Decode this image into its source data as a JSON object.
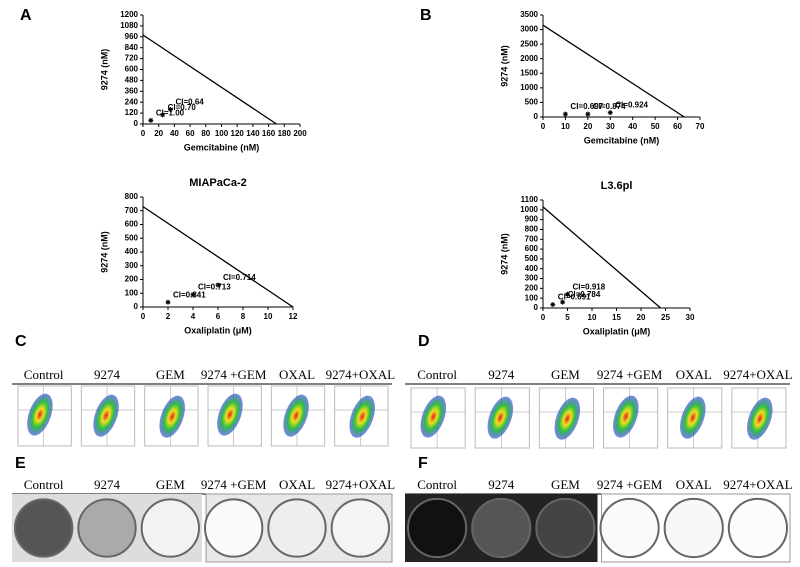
{
  "panel_labels": [
    "A",
    "B",
    "C",
    "D",
    "E",
    "F"
  ],
  "chart_data": [
    {
      "type": "isobologram",
      "x_label": "Gemcitabine (nM)",
      "y_label": "9274 (nM)",
      "xlim": [
        0,
        200
      ],
      "xticks": [
        0,
        20,
        40,
        60,
        80,
        100,
        120,
        140,
        160,
        180,
        200
      ],
      "ylim": [
        0,
        1200
      ],
      "yticks": [
        0,
        120,
        240,
        360,
        480,
        600,
        720,
        840,
        960,
        1080,
        1200
      ],
      "line": {
        "x": [
          0,
          170
        ],
        "y": [
          980,
          0
        ]
      },
      "points": {
        "x": [
          10,
          25,
          35
        ],
        "y": [
          40,
          100,
          160
        ],
        "labels": [
          "CI=1.00",
          "CI=0.70",
          "CI=0.64"
        ]
      }
    },
    {
      "type": "isobologram",
      "x_label": "Gemcitabine (nM)",
      "y_label": "9274 (nM)",
      "xlim": [
        0,
        70
      ],
      "xticks": [
        0,
        10,
        20,
        30,
        40,
        50,
        60,
        70
      ],
      "ylim": [
        0,
        3500
      ],
      "yticks": [
        0,
        500,
        1000,
        1500,
        2000,
        2500,
        3000,
        3500
      ],
      "line": {
        "x": [
          0,
          63
        ],
        "y": [
          3150,
          0
        ]
      },
      "points": {
        "x": [
          10,
          20,
          30
        ],
        "y": [
          100,
          100,
          150
        ],
        "labels": [
          "CI=0.697",
          "CI=0.874",
          "CI=0.924"
        ]
      }
    },
    {
      "type": "isobologram",
      "title": "MIAPaCa-2",
      "x_label": "Oxaliplatin (μM)",
      "y_label": "9274 (nM)",
      "xlim": [
        0,
        12
      ],
      "xticks": [
        0,
        2,
        4,
        6,
        8,
        10,
        12
      ],
      "ylim": [
        0,
        800
      ],
      "yticks": [
        0,
        100,
        200,
        300,
        400,
        500,
        600,
        700,
        800
      ],
      "line": {
        "x": [
          0,
          12
        ],
        "y": [
          730,
          0
        ]
      },
      "points": {
        "x": [
          2,
          4,
          6
        ],
        "y": [
          35,
          90,
          160
        ],
        "labels": [
          "CI=0.841",
          "CI=0.713",
          "CI=0.714"
        ]
      }
    },
    {
      "type": "isobologram",
      "title": "L3.6pl",
      "x_label": "Oxaliplatin (μM)",
      "y_label": "9274 (nM)",
      "xlim": [
        0,
        30
      ],
      "xticks": [
        0,
        5,
        10,
        15,
        20,
        25,
        30
      ],
      "ylim": [
        0,
        1100
      ],
      "yticks": [
        0,
        100,
        200,
        300,
        400,
        500,
        600,
        700,
        800,
        900,
        1000,
        1100
      ],
      "line": {
        "x": [
          0,
          24
        ],
        "y": [
          1030,
          0
        ]
      },
      "points": {
        "x": [
          2,
          4,
          5
        ],
        "y": [
          35,
          60,
          140
        ],
        "labels": [
          "CI=0.691",
          "CI=0.784",
          "CI=0.918"
        ]
      }
    }
  ],
  "image_panels": [
    {
      "columns": [
        "Control",
        "9274",
        "GEM",
        "9274 +GEM",
        "OXAL",
        "9274+OXAL"
      ]
    },
    {
      "columns": [
        "Control",
        "9274",
        "GEM",
        "9274 +GEM",
        "OXAL",
        "9274+OXAL"
      ]
    },
    {
      "columns": [
        "Control",
        "9274",
        "GEM",
        "9274 +GEM",
        "OXAL",
        "9274+OXAL"
      ]
    },
    {
      "columns": [
        "Control",
        "9274",
        "GEM",
        "9274 +GEM",
        "OXAL",
        "9274+OXAL"
      ]
    }
  ]
}
